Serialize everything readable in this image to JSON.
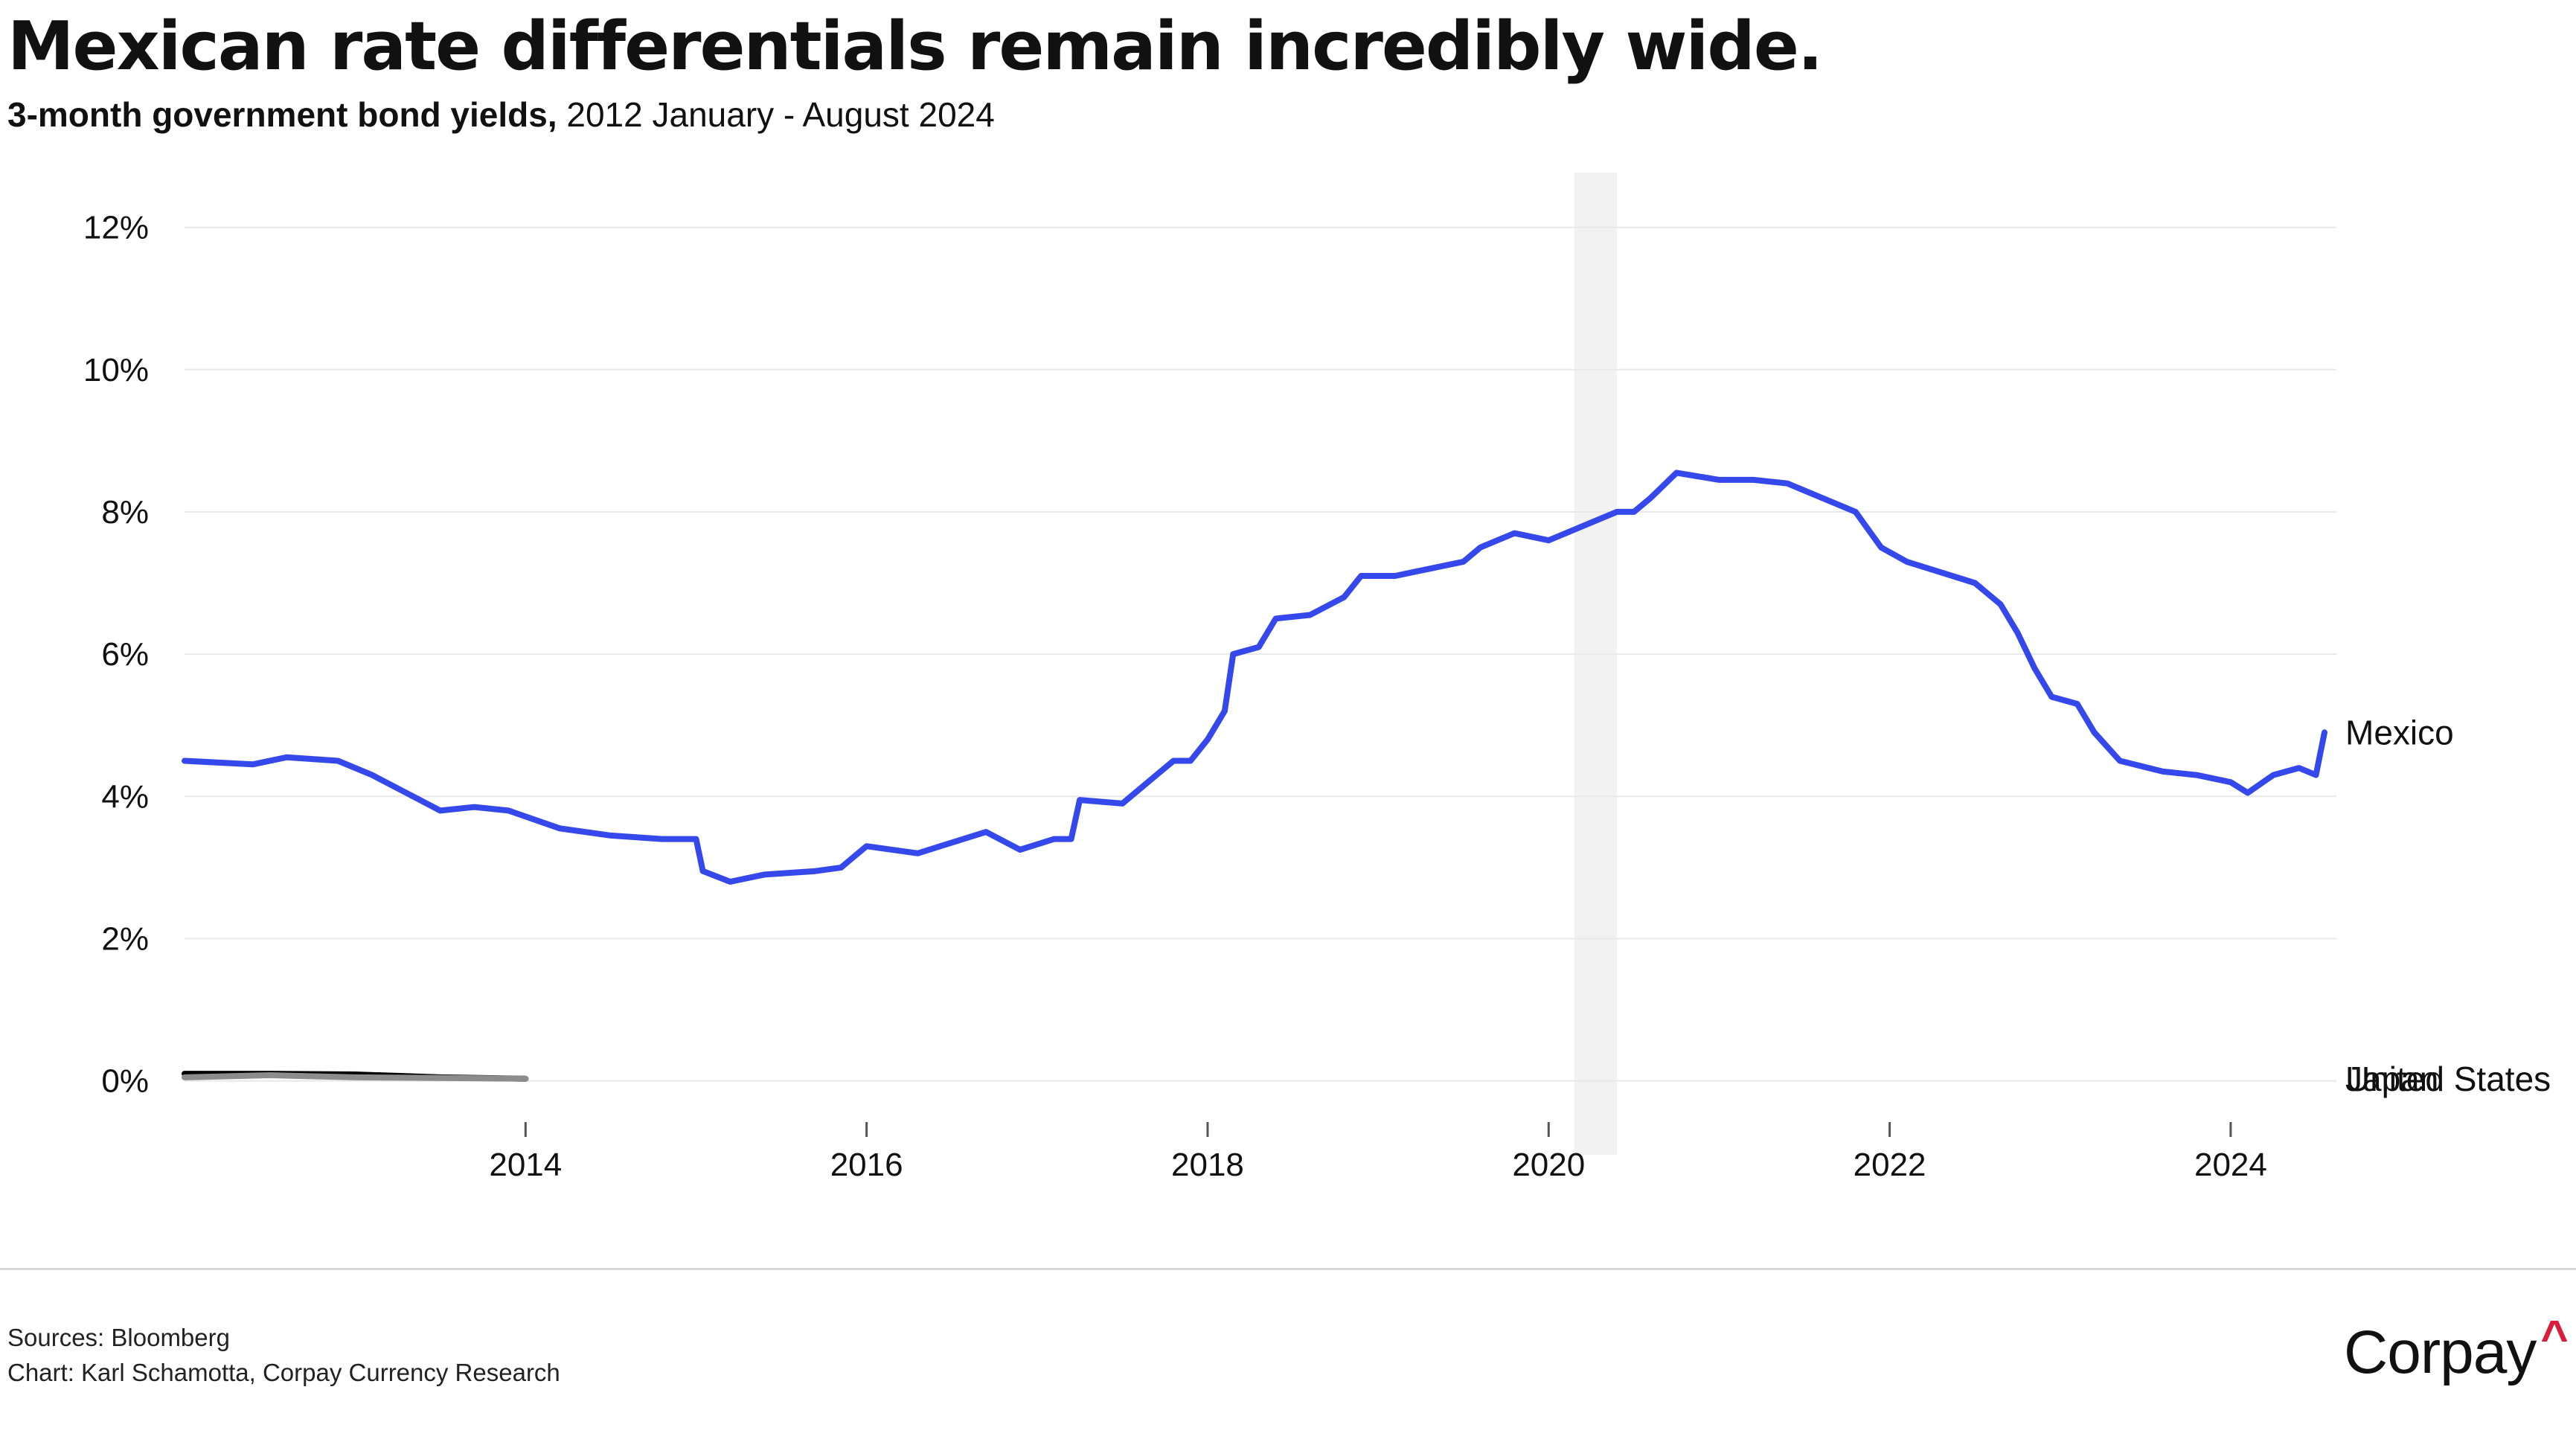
{
  "title": "Mexican rate differentials remain incredibly wide.",
  "subtitle": {
    "bold": "3-month government bond yields,",
    "rest": " 2012 January - August 2024"
  },
  "footer": {
    "sources": "Sources: Bloomberg",
    "credit": "Chart: Karl Schamotta, Corpay Currency Research"
  },
  "logo": {
    "text": "Corpay",
    "caret": "^"
  },
  "chart_data": {
    "type": "line",
    "title": "Mexican rate differentials remain incredibly wide.",
    "subtitle": "3-month government bond yields, 2012 January - August 2024",
    "xlim": [
      2012.0,
      2024.62
    ],
    "ylim": [
      -0.6,
      13.0
    ],
    "x_ticks": [
      2014,
      2016,
      2018,
      2020,
      2022,
      2024
    ],
    "x_tick_labels": [
      "2014",
      "2016",
      "2018",
      "2020",
      "2022",
      "2024"
    ],
    "y_ticks": [
      0,
      2,
      4,
      6,
      8,
      10,
      12
    ],
    "y_tick_labels": [
      "0%",
      "2%",
      "4%",
      "6%",
      "8%",
      "10%",
      "12%"
    ],
    "grid": "horizontal",
    "legend": "direct labels at line ends",
    "shaded_period": {
      "from": 2020.15,
      "to": 2020.4,
      "color": "#f2f2f2"
    },
    "series": [
      {
        "name": "Mexico",
        "color": "#3548ec",
        "points": [
          [
            2012.0,
            4.5
          ],
          [
            2012.4,
            4.45
          ],
          [
            2012.6,
            4.55
          ],
          [
            2012.9,
            4.5
          ],
          [
            2013.1,
            4.3
          ],
          [
            2013.3,
            4.05
          ],
          [
            2013.5,
            3.8
          ],
          [
            2013.7,
            3.85
          ],
          [
            2013.9,
            3.8
          ],
          [
            2014.2,
            3.55
          ],
          [
            2014.5,
            3.45
          ],
          [
            2014.8,
            3.4
          ],
          [
            2015.0,
            3.4
          ],
          [
            2015.04,
            2.95
          ],
          [
            2015.2,
            2.8
          ],
          [
            2015.4,
            2.9
          ],
          [
            2015.7,
            2.95
          ],
          [
            2015.85,
            3.0
          ],
          [
            2016.0,
            3.3
          ],
          [
            2016.3,
            3.2
          ],
          [
            2016.5,
            3.35
          ],
          [
            2016.7,
            3.5
          ],
          [
            2016.9,
            3.25
          ],
          [
            2017.1,
            3.4
          ],
          [
            2017.2,
            3.4
          ],
          [
            2017.25,
            3.95
          ],
          [
            2017.5,
            3.9
          ],
          [
            2017.7,
            4.3
          ],
          [
            2017.8,
            4.5
          ],
          [
            2017.9,
            4.5
          ],
          [
            2018.0,
            4.8
          ],
          [
            2018.1,
            5.2
          ],
          [
            2018.15,
            6.0
          ],
          [
            2018.3,
            6.1
          ],
          [
            2018.4,
            6.5
          ],
          [
            2018.6,
            6.55
          ],
          [
            2018.8,
            6.8
          ],
          [
            2018.9,
            7.1
          ],
          [
            2019.1,
            7.1
          ],
          [
            2019.3,
            7.2
          ],
          [
            2019.5,
            7.3
          ],
          [
            2019.6,
            7.5
          ],
          [
            2019.8,
            7.7
          ],
          [
            2020.0,
            7.6
          ],
          [
            2020.2,
            7.8
          ],
          [
            2020.4,
            8.0
          ],
          [
            2020.5,
            8.0
          ],
          [
            2020.6,
            8.2
          ],
          [
            2020.75,
            8.55
          ],
          [
            2021.0,
            8.45
          ],
          [
            2021.2,
            8.45
          ],
          [
            2021.4,
            8.4
          ],
          [
            2021.6,
            8.2
          ],
          [
            2021.8,
            8.0
          ],
          [
            2021.95,
            7.5
          ],
          [
            2022.1,
            7.3
          ],
          [
            2022.3,
            7.15
          ],
          [
            2022.5,
            7.0
          ],
          [
            2022.65,
            6.7
          ],
          [
            2022.75,
            6.3
          ],
          [
            2022.85,
            5.8
          ],
          [
            2022.95,
            5.4
          ],
          [
            2023.1,
            5.3
          ],
          [
            2023.2,
            4.9
          ],
          [
            2023.35,
            4.5
          ],
          [
            2023.6,
            4.35
          ],
          [
            2023.8,
            4.3
          ],
          [
            2024.0,
            4.2
          ],
          [
            2024.1,
            4.05
          ],
          [
            2024.25,
            4.3
          ],
          [
            2024.4,
            4.4
          ],
          [
            2024.5,
            4.3
          ],
          [
            2024.55,
            4.9
          ]
        ]
      },
      {
        "name": "United States",
        "color": "#8c8c8c",
        "points": [
          [
            2012.0,
            0.05
          ],
          [
            2012.5,
            0.08
          ],
          [
            2013.0,
            0.05
          ],
          [
            2013.5,
            0.04
          ],
          [
            2014.0,
            0.03
          ]
        ]
      },
      {
        "name": "Japan",
        "color": "#000000",
        "points": [
          [
            2012.0,
            0.1
          ],
          [
            2012.5,
            0.1
          ],
          [
            2013.0,
            0.09
          ],
          [
            2013.5,
            0.05
          ],
          [
            2014.0,
            0.03
          ]
        ]
      }
    ]
  }
}
